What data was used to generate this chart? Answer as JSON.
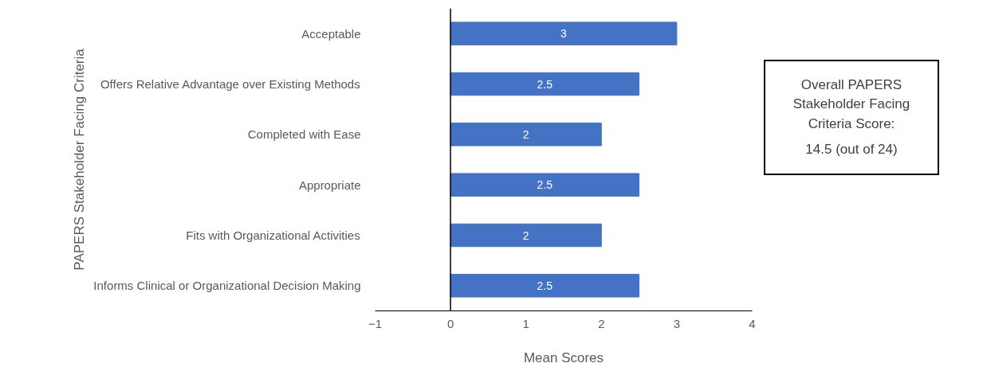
{
  "chart_data": {
    "type": "bar",
    "orientation": "horizontal",
    "categories": [
      "Acceptable",
      "Offers Relative Advantage over Existing Methods",
      "Completed with Ease",
      "Appropriate",
      "Fits with Organizational Activities",
      "Informs Clinical or Organizational Decision Making"
    ],
    "values": [
      3,
      2.5,
      2,
      2.5,
      2,
      2.5
    ],
    "color": "#4472c4",
    "data_labels": true,
    "xlim": [
      -1,
      4
    ],
    "xticks": [
      -1,
      0,
      1,
      2,
      3,
      4
    ],
    "xlabel": "Mean Scores",
    "ylabel": "PAPERS Stakeholder Facing Criteria",
    "annotations": [
      "Overall PAPERS Stakeholder Facing Criteria Score:",
      "14.5 (out of 24)"
    ]
  }
}
